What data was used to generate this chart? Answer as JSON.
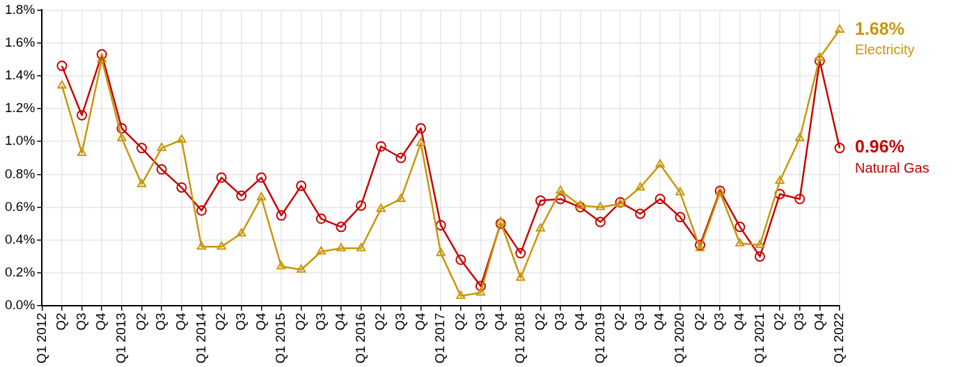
{
  "chart_data": {
    "type": "line",
    "categories": [
      "Q1 2012",
      "Q2",
      "Q3",
      "Q4",
      "Q1 2013",
      "Q2",
      "Q3",
      "Q4",
      "Q1 2014",
      "Q2",
      "Q3",
      "Q4",
      "Q1 2015",
      "Q2",
      "Q3",
      "Q4",
      "Q1 2016",
      "Q2",
      "Q3",
      "Q4",
      "Q1 2017",
      "Q2",
      "Q3",
      "Q4",
      "Q1 2018",
      "Q2",
      "Q3",
      "Q4",
      "Q1 2019",
      "Q2",
      "Q3",
      "Q4",
      "Q1 2020",
      "Q2",
      "Q3",
      "Q4",
      "Q1 2021",
      "Q2",
      "Q3",
      "Q4",
      "Q1 2022"
    ],
    "series": [
      {
        "name": "Electricity",
        "color": "#c8960a",
        "marker": "triangle",
        "values": [
          null,
          1.34,
          0.93,
          1.5,
          1.02,
          0.74,
          0.96,
          1.01,
          0.36,
          0.36,
          0.44,
          0.66,
          0.24,
          0.22,
          0.33,
          0.35,
          0.35,
          0.59,
          0.65,
          0.99,
          0.32,
          0.06,
          0.08,
          0.51,
          0.17,
          0.47,
          0.7,
          0.61,
          0.6,
          0.62,
          0.72,
          0.86,
          0.69,
          0.35,
          0.69,
          0.38,
          0.37,
          0.76,
          1.02,
          1.51,
          1.68
        ],
        "value_labels": [
          null,
          null,
          null,
          null,
          null,
          null,
          null,
          null,
          null,
          null,
          null,
          null,
          null,
          null,
          null,
          null,
          null,
          null,
          null,
          null,
          null,
          null,
          null,
          null,
          null,
          null,
          null,
          null,
          null,
          null,
          null,
          null,
          null,
          null,
          null,
          null,
          null,
          null,
          null,
          null,
          "1.68%"
        ]
      },
      {
        "name": "Natural Gas",
        "color": "#c80000",
        "marker": "circle",
        "values": [
          null,
          1.46,
          1.16,
          1.53,
          1.08,
          0.96,
          0.83,
          0.72,
          0.58,
          0.78,
          0.67,
          0.78,
          0.55,
          0.73,
          0.53,
          0.48,
          0.61,
          0.97,
          0.9,
          1.08,
          0.49,
          0.28,
          0.12,
          0.5,
          0.32,
          0.64,
          0.65,
          0.6,
          0.51,
          0.63,
          0.56,
          0.65,
          0.54,
          0.37,
          0.7,
          0.48,
          0.3,
          0.68,
          0.65,
          1.49,
          0.96
        ],
        "value_labels": [
          null,
          null,
          null,
          null,
          null,
          null,
          null,
          null,
          null,
          null,
          null,
          null,
          null,
          null,
          null,
          null,
          null,
          null,
          null,
          null,
          null,
          null,
          null,
          null,
          null,
          null,
          null,
          null,
          null,
          null,
          null,
          null,
          null,
          null,
          null,
          null,
          null,
          null,
          null,
          null,
          "0.96%"
        ]
      }
    ],
    "ylim": [
      0,
      1.8
    ],
    "yticks": [
      {
        "value": 0,
        "label": "0.0%"
      },
      {
        "value": 0.2,
        "label": "0.2%"
      },
      {
        "value": 0.4,
        "label": "0.4%"
      },
      {
        "value": 0.6,
        "label": "0.6%"
      },
      {
        "value": 0.8,
        "label": "0.8%"
      },
      {
        "value": 1.0,
        "label": "1.0%"
      },
      {
        "value": 1.2,
        "label": "1.2%"
      },
      {
        "value": 1.4,
        "label": "1.4%"
      },
      {
        "value": 1.6,
        "label": "1.6%"
      },
      {
        "value": 1.8,
        "label": "1.8%"
      }
    ],
    "grid": true,
    "legend": false,
    "line_style": "solid"
  }
}
